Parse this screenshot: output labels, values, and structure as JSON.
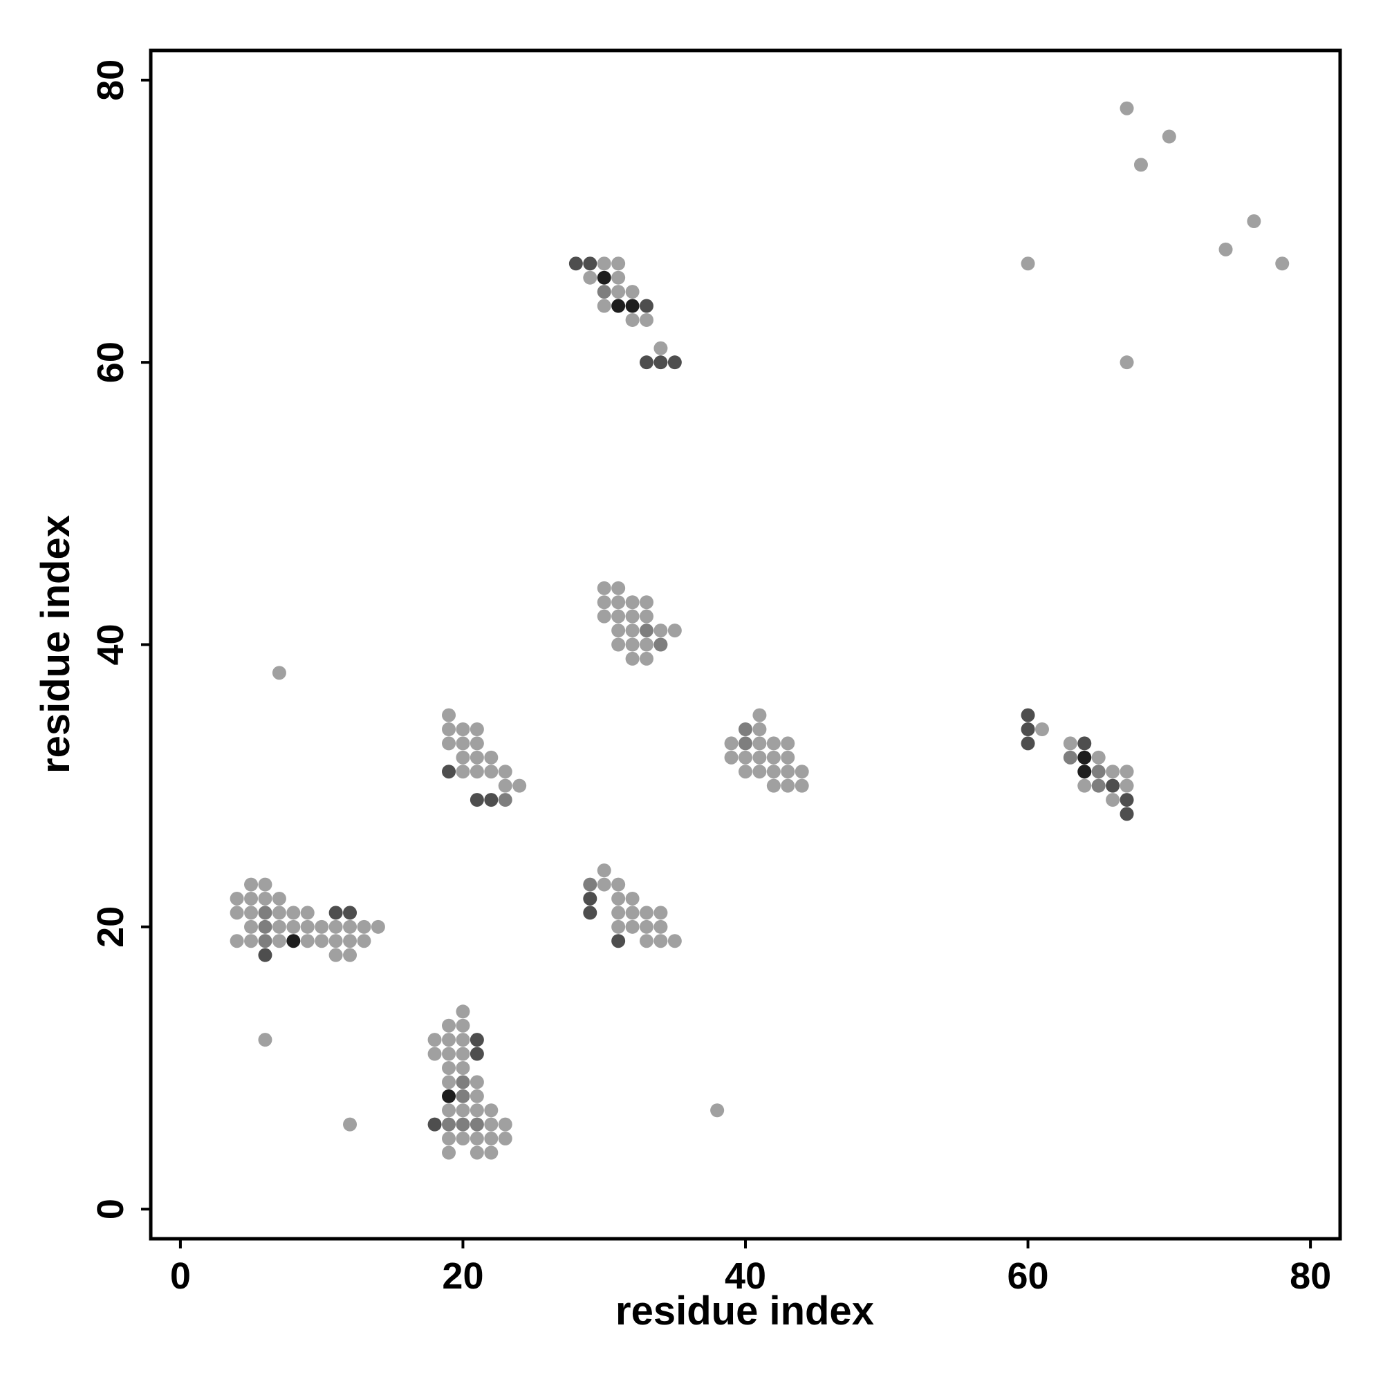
{
  "chart_data": {
    "type": "scatter",
    "x_label": "residue index",
    "y_label": "residue index",
    "xlim": [
      -2.1,
      82.1
    ],
    "ylim": [
      -2.1,
      82.1
    ],
    "xticks": [
      0,
      20,
      40,
      60,
      80
    ],
    "yticks": [
      0,
      20,
      40,
      60,
      80
    ],
    "series": [
      {
        "color": "#a0a0a0",
        "x": [
          5,
          6,
          4,
          5,
          6,
          7,
          4,
          5,
          7,
          8,
          9,
          5,
          7,
          8,
          9,
          10,
          11,
          12,
          13,
          14,
          4,
          5,
          7,
          9,
          10,
          11,
          12,
          13,
          11,
          12,
          6,
          7,
          12,
          38,
          20,
          19,
          20,
          18,
          19,
          20,
          18,
          19,
          20,
          19,
          20,
          19,
          21,
          21,
          19,
          20,
          21,
          22,
          22,
          23,
          19,
          20,
          21,
          22,
          23,
          19,
          21,
          22,
          19,
          19,
          20,
          21,
          19,
          20,
          21,
          20,
          21,
          22,
          20,
          21,
          22,
          23,
          23,
          24,
          30,
          30,
          31,
          31,
          32,
          31,
          32,
          33,
          34,
          31,
          32,
          33,
          34,
          33,
          34,
          35,
          30,
          31,
          30,
          31,
          32,
          33,
          30,
          31,
          32,
          33,
          31,
          32,
          34,
          35,
          31,
          32,
          33,
          32,
          33,
          41,
          41,
          39,
          41,
          42,
          43,
          39,
          40,
          41,
          42,
          43,
          40,
          41,
          42,
          43,
          44,
          42,
          43,
          44,
          30,
          31,
          29,
          31,
          31,
          32,
          30,
          32,
          33,
          34,
          61,
          63,
          65,
          66,
          67,
          64,
          67,
          66,
          60,
          67,
          67,
          68,
          70,
          74,
          76,
          78
        ],
        "values": [
          23,
          23,
          22,
          22,
          22,
          22,
          21,
          21,
          21,
          21,
          21,
          20,
          20,
          20,
          20,
          20,
          20,
          20,
          20,
          20,
          19,
          19,
          19,
          19,
          19,
          19,
          19,
          19,
          18,
          18,
          12,
          38,
          6,
          7,
          14,
          13,
          13,
          12,
          12,
          12,
          11,
          11,
          11,
          10,
          10,
          9,
          9,
          8,
          7,
          7,
          7,
          7,
          6,
          6,
          5,
          5,
          5,
          5,
          5,
          4,
          4,
          4,
          35,
          34,
          34,
          34,
          33,
          33,
          33,
          32,
          32,
          32,
          31,
          31,
          31,
          31,
          30,
          30,
          24,
          23,
          23,
          22,
          22,
          21,
          21,
          21,
          21,
          20,
          20,
          20,
          20,
          19,
          19,
          19,
          44,
          44,
          43,
          43,
          43,
          43,
          42,
          42,
          42,
          42,
          41,
          41,
          41,
          41,
          40,
          40,
          40,
          39,
          39,
          35,
          34,
          33,
          33,
          33,
          33,
          32,
          32,
          32,
          32,
          32,
          31,
          31,
          31,
          31,
          31,
          30,
          30,
          30,
          67,
          67,
          66,
          66,
          65,
          65,
          64,
          63,
          63,
          61,
          34,
          33,
          32,
          31,
          31,
          30,
          30,
          29,
          67,
          60,
          78,
          74,
          76,
          68,
          70,
          67
        ]
      },
      {
        "color": "#7e7e7e",
        "x": [
          6,
          6,
          6,
          20,
          20,
          19,
          20,
          21,
          23,
          29,
          33,
          34,
          40,
          40,
          30,
          63,
          65,
          65
        ],
        "values": [
          21,
          20,
          19,
          9,
          8,
          6,
          6,
          6,
          29,
          23,
          41,
          40,
          34,
          33,
          65,
          32,
          31,
          30
        ]
      },
      {
        "color": "#4e4e4e",
        "x": [
          11,
          12,
          6,
          21,
          21,
          18,
          19,
          21,
          22,
          29,
          29,
          31,
          28,
          29,
          33,
          33,
          34,
          35,
          60,
          60,
          60,
          64,
          66,
          67,
          67
        ],
        "values": [
          21,
          21,
          18,
          12,
          11,
          6,
          31,
          29,
          29,
          22,
          21,
          19,
          67,
          67,
          64,
          60,
          60,
          60,
          35,
          34,
          33,
          33,
          30,
          29,
          28
        ]
      },
      {
        "color": "#1e1e1e",
        "x": [
          8,
          19,
          30,
          31,
          32,
          64,
          64
        ],
        "values": [
          19,
          8,
          66,
          64,
          64,
          32,
          31
        ]
      }
    ]
  }
}
